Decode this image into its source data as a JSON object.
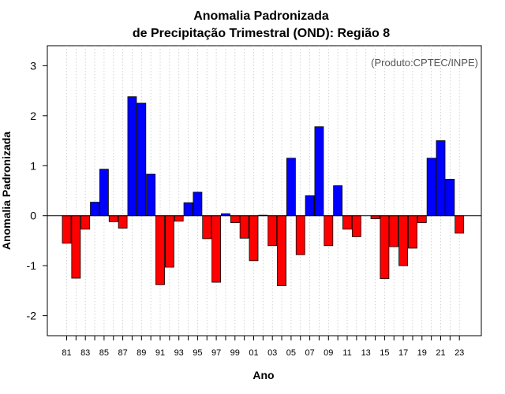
{
  "chart_data": {
    "type": "bar",
    "title": [
      "Anomalia Padronizada",
      "de Precipitação Trimestral (OND): Região 8"
    ],
    "xlabel": "Ano",
    "ylabel": "Anomalia Padronizada",
    "annotation": "(Produto:CPTEC/INPE)",
    "ylim": [
      -2.4,
      3.4
    ],
    "yticks": [
      -2,
      -1,
      0,
      1,
      2,
      3
    ],
    "ytick_labels": [
      "-2",
      "-1",
      "0",
      "1",
      "2",
      "3"
    ],
    "xtick_labels": [
      "81",
      "83",
      "85",
      "87",
      "89",
      "91",
      "93",
      "95",
      "97",
      "99",
      "01",
      "03",
      "05",
      "07",
      "09",
      "11",
      "13",
      "15",
      "17",
      "19",
      "21",
      "23"
    ],
    "categories": [
      "81",
      "82",
      "83",
      "84",
      "85",
      "86",
      "87",
      "88",
      "89",
      "90",
      "91",
      "92",
      "93",
      "94",
      "95",
      "96",
      "97",
      "98",
      "99",
      "00",
      "01",
      "02",
      "03",
      "04",
      "05",
      "06",
      "07",
      "08",
      "09",
      "10",
      "11",
      "12",
      "13",
      "14",
      "15",
      "16",
      "17",
      "18",
      "19",
      "20",
      "21",
      "22",
      "23"
    ],
    "values": [
      -0.55,
      -1.25,
      -0.27,
      0.27,
      0.93,
      -0.12,
      -0.25,
      2.38,
      2.25,
      0.83,
      -1.38,
      -1.03,
      -0.11,
      0.26,
      0.47,
      -0.46,
      -1.33,
      0.04,
      -0.14,
      -0.45,
      -0.9,
      0.01,
      -0.6,
      -1.4,
      1.15,
      -0.78,
      0.4,
      1.78,
      -0.6,
      0.6,
      -0.27,
      -0.42,
      0.0,
      -0.06,
      -1.26,
      -0.62,
      -1.0,
      -0.65,
      -0.14,
      1.15,
      1.5,
      0.73,
      -0.35
    ],
    "colors": {
      "positive": "#0000ff",
      "negative": "#ff0000"
    },
    "grid": "vertical dotted"
  }
}
